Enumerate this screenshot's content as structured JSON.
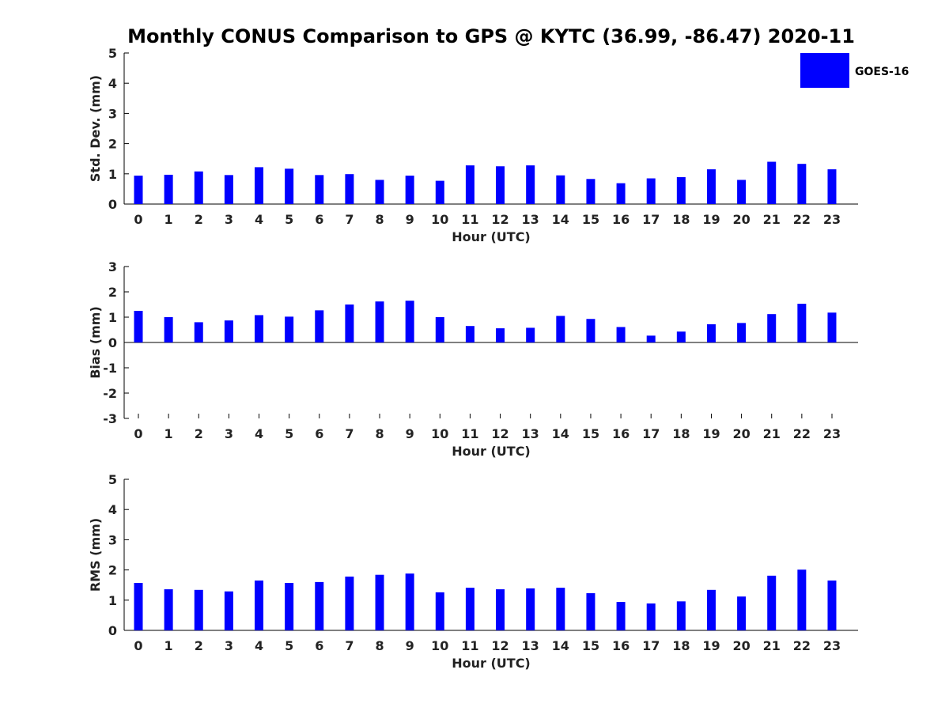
{
  "title": "Monthly CONUS Comparison to GPS @ KYTC (36.99, -86.47) 2020-11",
  "legend": {
    "label": "GOES-16",
    "color": "#0000ff",
    "placement": "top-right"
  },
  "chart_data": [
    {
      "type": "bar",
      "xlabel": "Hour (UTC)",
      "ylabel": "Std. Dev. (mm)",
      "ylim": [
        0,
        5
      ],
      "yticks": [
        "0",
        "1",
        "2",
        "3",
        "4",
        "5"
      ],
      "categories": [
        "0",
        "1",
        "2",
        "3",
        "4",
        "5",
        "6",
        "7",
        "8",
        "9",
        "10",
        "11",
        "12",
        "13",
        "14",
        "15",
        "16",
        "17",
        "18",
        "19",
        "20",
        "21",
        "22",
        "23"
      ],
      "series": [
        {
          "name": "GOES-16",
          "color": "#0000ff",
          "values": [
            0.94,
            0.97,
            1.08,
            0.96,
            1.22,
            1.17,
            0.96,
            0.99,
            0.8,
            0.94,
            0.77,
            1.28,
            1.25,
            1.28,
            0.95,
            0.83,
            0.69,
            0.85,
            0.89,
            1.15,
            0.8,
            1.4,
            1.33,
            1.15
          ]
        }
      ]
    },
    {
      "type": "bar",
      "xlabel": "Hour (UTC)",
      "ylabel": "Bias (mm)",
      "ylim": [
        -3,
        3
      ],
      "yticks": [
        "-3",
        "-2",
        "-1",
        "0",
        "1",
        "2",
        "3"
      ],
      "categories": [
        "0",
        "1",
        "2",
        "3",
        "4",
        "5",
        "6",
        "7",
        "8",
        "9",
        "10",
        "11",
        "12",
        "13",
        "14",
        "15",
        "16",
        "17",
        "18",
        "19",
        "20",
        "21",
        "22",
        "23"
      ],
      "series": [
        {
          "name": "GOES-16",
          "color": "#0000ff",
          "values": [
            1.25,
            1.0,
            0.8,
            0.87,
            1.08,
            1.02,
            1.27,
            1.5,
            1.62,
            1.65,
            1.0,
            0.65,
            0.56,
            0.58,
            1.05,
            0.93,
            0.61,
            0.27,
            0.43,
            0.72,
            0.77,
            1.12,
            1.53,
            1.18
          ]
        }
      ]
    },
    {
      "type": "bar",
      "xlabel": "Hour (UTC)",
      "ylabel": "RMS (mm)",
      "ylim": [
        0,
        5
      ],
      "yticks": [
        "0",
        "1",
        "2",
        "3",
        "4",
        "5"
      ],
      "categories": [
        "0",
        "1",
        "2",
        "3",
        "4",
        "5",
        "6",
        "7",
        "8",
        "9",
        "10",
        "11",
        "12",
        "13",
        "14",
        "15",
        "16",
        "17",
        "18",
        "19",
        "20",
        "21",
        "22",
        "23"
      ],
      "series": [
        {
          "name": "GOES-16",
          "color": "#0000ff",
          "values": [
            1.57,
            1.36,
            1.34,
            1.29,
            1.65,
            1.57,
            1.6,
            1.78,
            1.84,
            1.88,
            1.26,
            1.41,
            1.36,
            1.39,
            1.41,
            1.23,
            0.94,
            0.89,
            0.96,
            1.34,
            1.12,
            1.81,
            2.01,
            1.65
          ]
        }
      ]
    }
  ]
}
